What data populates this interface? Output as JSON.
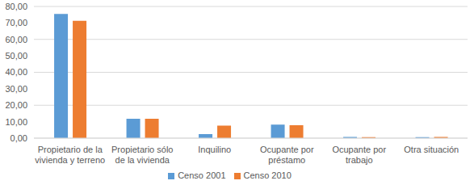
{
  "chart_data": {
    "type": "bar",
    "categories": [
      "Propietario de la vivienda y terreno",
      "Propietario sólo de la vivienda",
      "Inquilino",
      "Ocupante por préstamo",
      "Ocupante por trabajo",
      "Otra situación"
    ],
    "series": [
      {
        "name": "Censo 2001",
        "color": "#5b9bd5",
        "values": [
          75.5,
          11.8,
          2.4,
          8.2,
          0.7,
          0.6
        ]
      },
      {
        "name": "Censo 2010",
        "color": "#ed7d31",
        "values": [
          71.3,
          11.8,
          7.6,
          7.8,
          0.6,
          0.7
        ]
      }
    ],
    "ylim": [
      0,
      80
    ],
    "yticks": [
      {
        "value": 0,
        "label": "0,00"
      },
      {
        "value": 10,
        "label": "10,00"
      },
      {
        "value": 20,
        "label": "20,00"
      },
      {
        "value": 30,
        "label": "30,00"
      },
      {
        "value": 40,
        "label": "40,00"
      },
      {
        "value": 50,
        "label": "50,00"
      },
      {
        "value": 60,
        "label": "60,00"
      },
      {
        "value": 70,
        "label": "70,00"
      },
      {
        "value": 80,
        "label": "80,00"
      }
    ],
    "grid": true,
    "legend": "bottom"
  }
}
